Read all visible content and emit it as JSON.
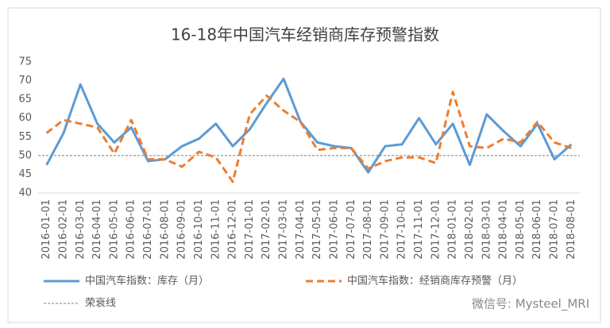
{
  "chart_data": {
    "type": "line",
    "title": "16-18年中国汽车经销商库存预警指数",
    "categories": [
      "2016-01-01",
      "2016-02-01",
      "2016-03-01",
      "2016-04-01",
      "2016-05-01",
      "2016-06-01",
      "2016-07-01",
      "2016-08-01",
      "2016-09-01",
      "2016-10-01",
      "2016-11-01",
      "2016-12-01",
      "2017-01-01",
      "2017-02-01",
      "2017-03-01",
      "2017-04-01",
      "2017-05-01",
      "2017-06-01",
      "2017-07-01",
      "2017-08-01",
      "2017-09-01",
      "2017-10-01",
      "2017-11-01",
      "2017-12-01",
      "2018-01-01",
      "2018-02-01",
      "2018-03-01",
      "2018-04-01",
      "2018-05-01",
      "2018-06-01",
      "2018-07-01",
      "2018-08-01"
    ],
    "series": [
      {
        "name": "中国汽车指数：库存（月）",
        "color": "#5b9bd5",
        "dash": false,
        "values": [
          47.5,
          56,
          69,
          58.5,
          53.5,
          57.5,
          48.5,
          49,
          52.5,
          54.5,
          58.5,
          52.5,
          57,
          64,
          70.5,
          59,
          53.5,
          52.5,
          52,
          45.5,
          52.5,
          53,
          60,
          53,
          58.5,
          47.5,
          61,
          56.5,
          52.5,
          58.5,
          49,
          53
        ]
      },
      {
        "name": "中国汽车指数：经销商库存预警（月）",
        "color": "#ed7d31",
        "dash": true,
        "values": [
          56,
          59.5,
          58.5,
          57.5,
          50.5,
          59.5,
          49,
          49,
          47,
          51,
          49.5,
          43,
          61,
          66,
          62,
          59,
          51.5,
          52,
          52,
          46.5,
          48.5,
          49.5,
          49.5,
          48,
          67,
          52.5,
          52,
          54.5,
          53.5,
          59,
          53.5,
          52
        ]
      }
    ],
    "reference_line": {
      "name": "荣衰线",
      "value": 50,
      "color": "#7f7f7f"
    },
    "ylim": [
      40,
      75
    ],
    "yticks": [
      40,
      45,
      50,
      55,
      60,
      65,
      70,
      75
    ],
    "watermark": "微信号: Mysteel_MRI"
  }
}
